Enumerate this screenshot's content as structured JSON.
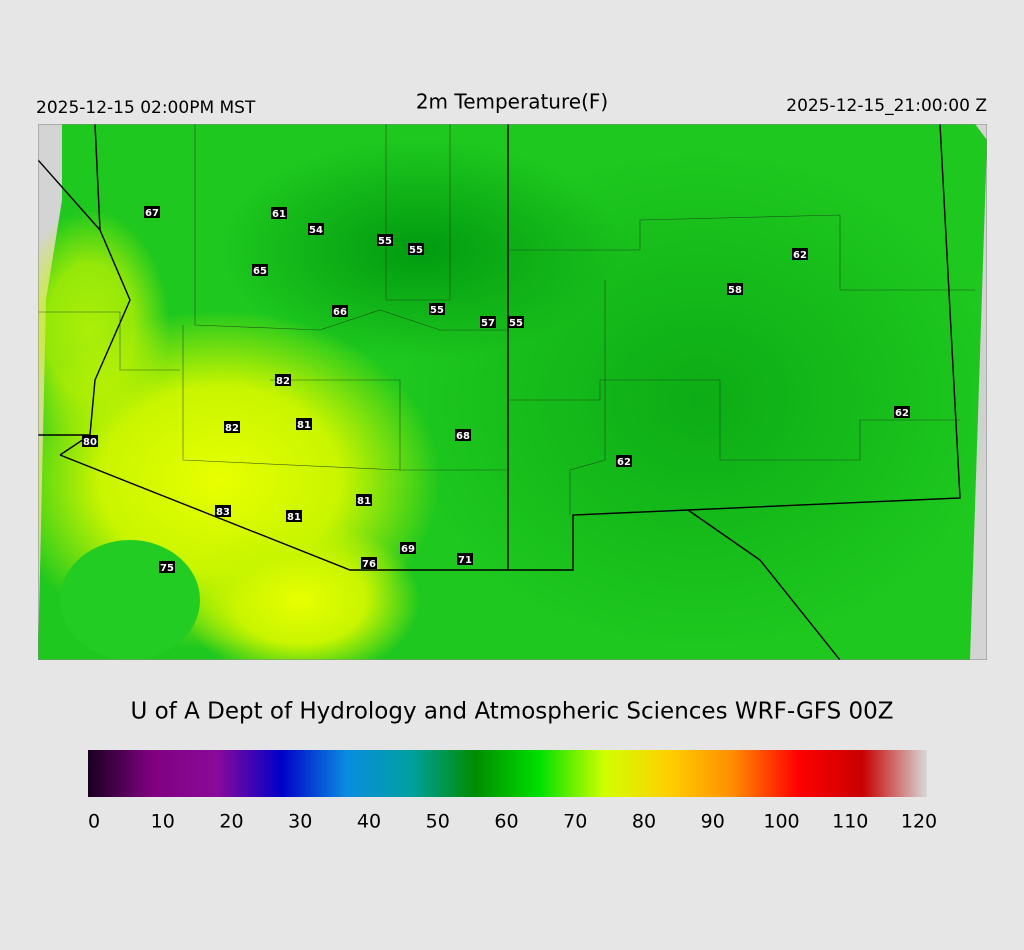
{
  "header": {
    "local_time": "2025-12-15 02:00PM MST",
    "title": "2m Temperature(F)",
    "utc_time": "2025-12-15_21:00:00 Z"
  },
  "station_labels": [
    "67",
    "61",
    "54",
    "55",
    "55",
    "65",
    "62",
    "58",
    "66",
    "55",
    "57",
    "55",
    "82",
    "62",
    "82",
    "81",
    "80",
    "68",
    "62",
    "81",
    "83",
    "81",
    "69",
    "76",
    "71",
    "75"
  ],
  "footer": {
    "credit": "U of A Dept of Hydrology and Atmospheric Sciences WRF-GFS 00Z"
  },
  "colorbar": {
    "range": [
      0,
      120
    ],
    "ticks": [
      0,
      10,
      20,
      30,
      40,
      50,
      60,
      70,
      80,
      90,
      100,
      110,
      120
    ],
    "colors": [
      "#1a0020",
      "#800080",
      "#8a0a9a",
      "#0000c8",
      "#0a8ce0",
      "#00a0a0",
      "#008c00",
      "#00e000",
      "#d0ff00",
      "#ffd000",
      "#ff8c00",
      "#ff0000",
      "#c80000",
      "#d8d8d8"
    ]
  }
}
